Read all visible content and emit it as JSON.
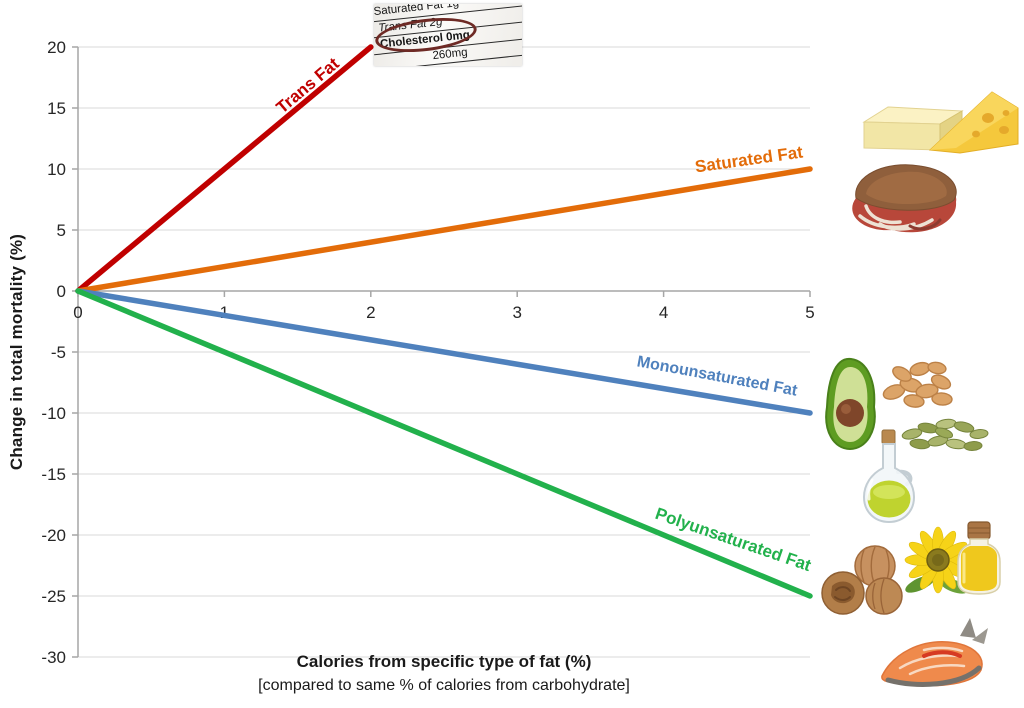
{
  "chart_data": {
    "type": "line",
    "title": "",
    "xlabel": "Calories from specific type of fat (%)",
    "xlabel_note": "[compared to same % of calories from carbohydrate]",
    "ylabel": "Change in total mortality (%)",
    "xlim": [
      0,
      5
    ],
    "ylim": [
      -30,
      20
    ],
    "xticks": [
      0,
      1,
      2,
      3,
      4,
      5
    ],
    "yticks": [
      20,
      15,
      10,
      5,
      0,
      -5,
      -10,
      -15,
      -20,
      -25,
      -30
    ],
    "grid": "horizontal",
    "legend": "inline-rotated-labels",
    "series": [
      {
        "name": "Trans Fat",
        "color": "#C00000",
        "points": [
          [
            0,
            0
          ],
          [
            2,
            20
          ]
        ]
      },
      {
        "name": "Saturated Fat",
        "color": "#E36C09",
        "points": [
          [
            0,
            0
          ],
          [
            5,
            10
          ]
        ]
      },
      {
        "name": "Monounsaturated Fat",
        "color": "#4F81BD",
        "points": [
          [
            0,
            0
          ],
          [
            5,
            -10
          ]
        ]
      },
      {
        "name": "Polyunsaturated Fat",
        "color": "#22B14C",
        "points": [
          [
            0,
            0
          ],
          [
            5,
            -25
          ]
        ]
      }
    ],
    "colors": {
      "gridline": "#D9D9D9",
      "axis": "#A6A6A6",
      "tick_text": "#262626"
    }
  },
  "nutrition_label": {
    "rows": [
      {
        "text": "Saturated Fat 1g"
      },
      {
        "text": "Trans Fat 2g",
        "circled": true
      },
      {
        "text": "Cholesterol 0mg"
      },
      {
        "text": "260mg"
      }
    ],
    "circle_color": "#6E2A25"
  },
  "food_images": {
    "saturated_fat_group": [
      "butter",
      "cheese-wedge",
      "steak"
    ],
    "monounsaturated_fat_group": [
      "avocado",
      "almonds",
      "pumpkin-seeds",
      "olive-oil-bottle"
    ],
    "polyunsaturated_fat_group": [
      "walnuts",
      "sunflower",
      "sunflower-oil-bottle",
      "salmon-steak"
    ]
  }
}
